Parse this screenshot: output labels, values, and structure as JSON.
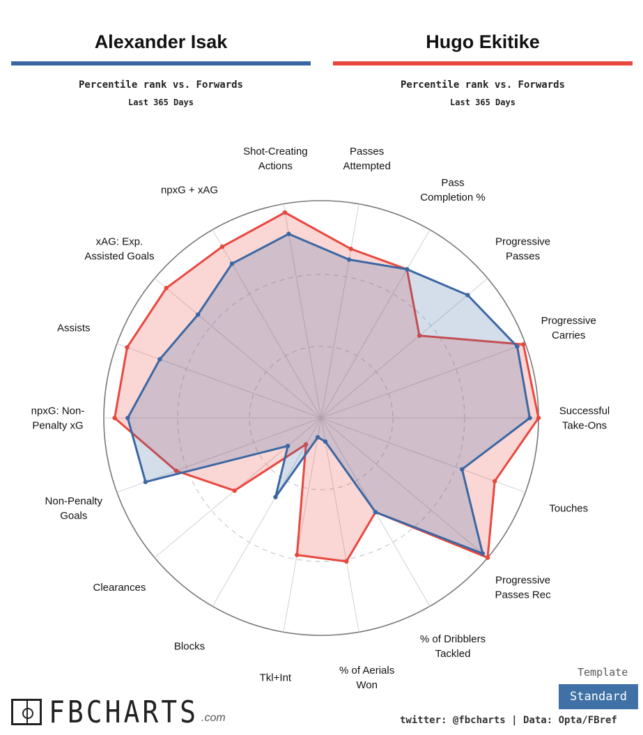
{
  "players": [
    {
      "name": "Alexander Isak",
      "subtitle": "Percentile rank vs. Forwards",
      "period": "Last 365 Days",
      "color": "#3a67a3"
    },
    {
      "name": "Hugo Ekitike",
      "subtitle": "Percentile rank vs. Forwards",
      "period": "Last 365 Days",
      "color": "#e8473e"
    }
  ],
  "chart_data": {
    "type": "radar",
    "axes": [
      "Passes|Attempted",
      "Pass|Completion %",
      "Progressive|Passes",
      "Progressive|Carries",
      "Successful|Take-Ons",
      "Touches",
      "Progressive|Passes Rec",
      "% of Dribblers|Tackled",
      "% of Aerials|Won",
      "Tkl+Int",
      "Blocks",
      "Clearances",
      "Non-Penalty|Goals",
      "npxG: Non-|Penalty xG",
      "Assists",
      "xAG: Exp.|Assisted Goals",
      "npxG + xAG",
      "Shot-Creating|Actions"
    ],
    "range": [
      0,
      100
    ],
    "rings": [
      33,
      66,
      100
    ],
    "series": [
      {
        "name": "Alexander Isak",
        "color": "#3a67a3",
        "values": [
          74,
          79,
          88,
          96,
          96,
          69,
          97,
          50,
          11,
          9,
          42,
          20,
          86,
          89,
          79,
          74,
          82,
          86
        ]
      },
      {
        "name": "Hugo Ekitike",
        "color": "#e8473e",
        "values": [
          79,
          79,
          59,
          99,
          100,
          85,
          100,
          50,
          67,
          64,
          14,
          52,
          71,
          95,
          95,
          93,
          91,
          96
        ]
      }
    ]
  },
  "logo": {
    "text": "FBCHARTS",
    "suffix": ".com"
  },
  "template": {
    "label": "Template",
    "value": "Standard"
  },
  "credit": "twitter: @fbcharts | Data: Opta/FBref"
}
